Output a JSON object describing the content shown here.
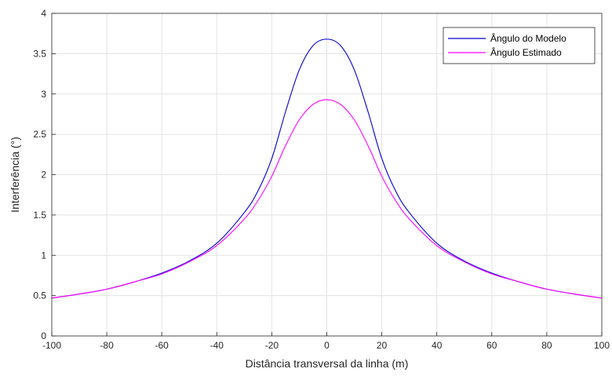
{
  "chart_data": {
    "type": "line",
    "title": "",
    "xlabel": "Distância transversal da linha (m)",
    "ylabel": "Interferência (°)",
    "xlim": [
      -100,
      100
    ],
    "ylim": [
      0,
      4
    ],
    "xticks": [
      -100,
      -80,
      -60,
      -40,
      -20,
      0,
      20,
      40,
      60,
      80,
      100
    ],
    "yticks": [
      0,
      0.5,
      1,
      1.5,
      2,
      2.5,
      3,
      3.5,
      4
    ],
    "grid": true,
    "legend_position": "top-right",
    "x": [
      -100,
      -90,
      -80,
      -70,
      -60,
      -50,
      -40,
      -30,
      -25,
      -20,
      -15,
      -10,
      -5,
      0,
      5,
      10,
      15,
      20,
      25,
      30,
      40,
      50,
      60,
      70,
      80,
      90,
      100
    ],
    "series": [
      {
        "name": "Ângulo do Modelo",
        "color": "#0000cc",
        "values": [
          0.47,
          0.52,
          0.58,
          0.67,
          0.78,
          0.93,
          1.15,
          1.53,
          1.8,
          2.2,
          2.78,
          3.3,
          3.6,
          3.68,
          3.6,
          3.3,
          2.78,
          2.2,
          1.8,
          1.53,
          1.15,
          0.93,
          0.78,
          0.67,
          0.58,
          0.52,
          0.47
        ]
      },
      {
        "name": "Ângulo Estimado",
        "color": "#ff00ff",
        "values": [
          0.47,
          0.52,
          0.58,
          0.67,
          0.77,
          0.92,
          1.12,
          1.45,
          1.68,
          1.98,
          2.36,
          2.68,
          2.87,
          2.93,
          2.87,
          2.68,
          2.36,
          1.98,
          1.68,
          1.45,
          1.12,
          0.92,
          0.77,
          0.67,
          0.58,
          0.52,
          0.47
        ]
      }
    ]
  }
}
